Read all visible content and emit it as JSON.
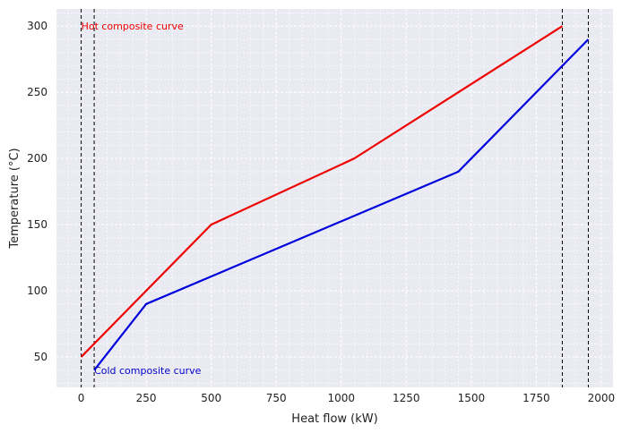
{
  "chart_data": {
    "type": "line",
    "title": "",
    "xlabel": "Heat flow (kW)",
    "ylabel": "Temperature (°C)",
    "xlim": [
      -95,
      2045
    ],
    "ylim": [
      27,
      313
    ],
    "xticks": [
      0,
      250,
      500,
      750,
      1000,
      1250,
      1500,
      1750,
      2000
    ],
    "yticks": [
      50,
      100,
      150,
      200,
      250,
      300
    ],
    "grid": true,
    "minor_grid": true,
    "legend": "none",
    "background": "#eaeaf2",
    "series": [
      {
        "color": "#ee0000",
        "x": [
          0,
          500,
          1050,
          1850
        ],
        "y": [
          50,
          150,
          200,
          300
        ]
      },
      {
        "color": "#0000dd",
        "x": [
          50,
          250,
          1450,
          1950
        ],
        "y": [
          40,
          90,
          190,
          290
        ]
      }
    ],
    "vlines": [
      0,
      50,
      1850,
      1950
    ],
    "annotations": [
      {
        "text": "Hot composite curve",
        "x": 0,
        "y": 300,
        "color": "#ee0000"
      },
      {
        "text": "Cold composite curve",
        "x": 50,
        "y": 40,
        "color": "#0000cc"
      }
    ]
  }
}
